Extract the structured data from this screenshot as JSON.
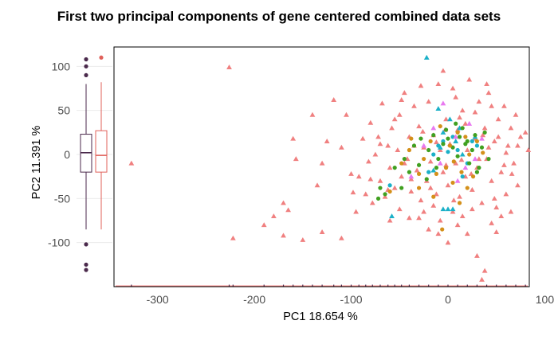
{
  "chart_data": {
    "type": "scatter",
    "title": "First two principal components of gene centered combined data sets",
    "xlabel": "PC1 18.654 %",
    "ylabel": "PC2 11.391 %",
    "xlim": [
      -345,
      84
    ],
    "ylim": [
      -150,
      122
    ],
    "x_ticks": [
      -300,
      -200,
      -100,
      0,
      100
    ],
    "y_ticks": [
      -100,
      -50,
      0,
      50,
      100
    ],
    "grid": false,
    "legend": "none",
    "marginal_boxplots": [
      {
        "q1": -20,
        "median": 2,
        "q3": 23,
        "whisker_low": -85,
        "whisker_high": 80,
        "outliers": [
          90,
          100,
          108,
          -102,
          -125,
          -131
        ],
        "color": "#4b2a4c"
      },
      {
        "q1": -20,
        "median": -1,
        "q3": 27,
        "whisker_low": -85,
        "whisker_high": 82,
        "outliers": [
          110
        ],
        "color": "#e0605a"
      }
    ],
    "series": [
      {
        "color": "#f08080",
        "marker": "triangle",
        "points": [
          [
            -226,
            99
          ],
          [
            -327,
            -10
          ],
          [
            -222,
            -95
          ],
          [
            -170,
            -55
          ],
          [
            -165,
            -63
          ],
          [
            -160,
            18
          ],
          [
            -157,
            -5
          ],
          [
            -140,
            45
          ],
          [
            -135,
            -35
          ],
          [
            -130,
            -10
          ],
          [
            -125,
            15
          ],
          [
            -118,
            62
          ],
          [
            -110,
            8
          ],
          [
            -105,
            45
          ],
          [
            -100,
            -22
          ],
          [
            -98,
            -43
          ],
          [
            -95,
            -65
          ],
          [
            -92,
            -25
          ],
          [
            -88,
            18
          ],
          [
            -85,
            -45
          ],
          [
            -82,
            -8
          ],
          [
            -80,
            36
          ],
          [
            -78,
            -55
          ],
          [
            -75,
            0
          ],
          [
            -72,
            20
          ],
          [
            -70,
            -30
          ],
          [
            -68,
            58
          ],
          [
            -65,
            -48
          ],
          [
            -62,
            10
          ],
          [
            -60,
            -15
          ],
          [
            -58,
            30
          ],
          [
            -55,
            -38
          ],
          [
            -52,
            5
          ],
          [
            -50,
            45
          ],
          [
            -48,
            -25
          ],
          [
            -45,
            70
          ],
          [
            -42,
            -5
          ],
          [
            -40,
            20
          ],
          [
            -38,
            -42
          ],
          [
            -35,
            55
          ],
          [
            -32,
            -18
          ],
          [
            -30,
            32
          ],
          [
            -28,
            -52
          ],
          [
            -25,
            8
          ],
          [
            -22,
            -30
          ],
          [
            -20,
            60
          ],
          [
            -18,
            -8
          ],
          [
            -15,
            22
          ],
          [
            -12,
            -45
          ],
          [
            -10,
            80
          ],
          [
            -8,
            5
          ],
          [
            -5,
            -20
          ],
          [
            -2,
            40
          ],
          [
            0,
            -35
          ],
          [
            2,
            12
          ],
          [
            5,
            75
          ],
          [
            8,
            -10
          ],
          [
            10,
            28
          ],
          [
            12,
            -48
          ],
          [
            15,
            50
          ],
          [
            18,
            -25
          ],
          [
            20,
            5
          ],
          [
            22,
            85
          ],
          [
            25,
            -40
          ],
          [
            28,
            18
          ],
          [
            30,
            -15
          ],
          [
            32,
            60
          ],
          [
            35,
            -55
          ],
          [
            38,
            30
          ],
          [
            40,
            -5
          ],
          [
            42,
            70
          ],
          [
            45,
            -30
          ],
          [
            48,
            15
          ],
          [
            50,
            -60
          ],
          [
            52,
            40
          ],
          [
            55,
            -20
          ],
          [
            58,
            55
          ],
          [
            60,
            -45
          ],
          [
            62,
            10
          ],
          [
            65,
            30
          ],
          [
            68,
            -10
          ],
          [
            70,
            45
          ],
          [
            72,
            -35
          ],
          [
            75,
            20
          ],
          [
            80,
            25
          ],
          [
            83,
            5
          ],
          [
            -190,
            -80
          ],
          [
            -180,
            -70
          ],
          [
            -170,
            -92
          ],
          [
            -150,
            -97
          ],
          [
            -130,
            -88
          ],
          [
            -110,
            -95
          ],
          [
            -30,
            -72
          ],
          [
            -20,
            -85
          ],
          [
            -10,
            -90
          ],
          [
            0,
            -100
          ],
          [
            10,
            -80
          ],
          [
            20,
            -90
          ],
          [
            30,
            -115
          ],
          [
            35,
            -142
          ],
          [
            38,
            -132
          ],
          [
            45,
            -78
          ],
          [
            50,
            -88
          ],
          [
            55,
            -70
          ],
          [
            -60,
            -75
          ],
          [
            -50,
            -62
          ],
          [
            -40,
            -72
          ],
          [
            -25,
            -65
          ],
          [
            -15,
            -58
          ],
          [
            5,
            -65
          ],
          [
            15,
            -70
          ],
          [
            25,
            -62
          ],
          [
            -5,
            95
          ],
          [
            8,
            65
          ],
          [
            -28,
            78
          ],
          [
            12,
            42
          ],
          [
            -35,
            10
          ],
          [
            28,
            48
          ],
          [
            40,
            80
          ],
          [
            -45,
            -10
          ],
          [
            45,
            55
          ],
          [
            -8,
            -75
          ],
          [
            65,
            -65
          ],
          [
            -70,
            12
          ],
          [
            -55,
            40
          ],
          [
            -3,
            28
          ],
          [
            18,
            35
          ],
          [
            32,
            -5
          ],
          [
            48,
            -50
          ],
          [
            -18,
            -38
          ],
          [
            24,
            -22
          ],
          [
            36,
            22
          ],
          [
            -12,
            14
          ],
          [
            6,
            -52
          ],
          [
            14,
            -6
          ],
          [
            -26,
            26
          ],
          [
            60,
            2
          ],
          [
            52,
            20
          ],
          [
            -38,
            -28
          ],
          [
            -2,
            -12
          ],
          [
            42,
            8
          ],
          [
            -48,
            62
          ],
          [
            72,
            10
          ],
          [
            66,
            -22
          ],
          [
            58,
            -12
          ],
          [
            -62,
            -40
          ],
          [
            -80,
            -28
          ]
        ]
      },
      {
        "color": "#1bb0c8",
        "marker": "triangle",
        "points": [
          [
            -22,
            110
          ],
          [
            -10,
            52
          ],
          [
            2,
            40
          ],
          [
            8,
            15
          ],
          [
            12,
            30
          ],
          [
            -5,
            25
          ],
          [
            15,
            0
          ],
          [
            -15,
            -18
          ],
          [
            5,
            -62
          ],
          [
            0,
            -62
          ],
          [
            -5,
            -62
          ],
          [
            -58,
            -70
          ],
          [
            28,
            20
          ],
          [
            -8,
            8
          ]
        ]
      },
      {
        "color": "#1bb0c8",
        "marker": "circle",
        "points": [
          [
            -5,
            15
          ],
          [
            10,
            5
          ],
          [
            20,
            -10
          ],
          [
            -20,
            -20
          ],
          [
            30,
            10
          ],
          [
            -60,
            -35
          ],
          [
            -10,
            10
          ],
          [
            5,
            20
          ],
          [
            15,
            -25
          ],
          [
            -15,
            0
          ],
          [
            25,
            15
          ],
          [
            0,
            3
          ]
        ]
      },
      {
        "color": "#e879f0",
        "marker": "triangle",
        "points": [
          [
            -5,
            58
          ],
          [
            8,
            20
          ],
          [
            18,
            -15
          ],
          [
            -38,
            -25
          ],
          [
            -15,
            30
          ],
          [
            -25,
            10
          ],
          [
            22,
            35
          ],
          [
            10,
            -30
          ],
          [
            -8,
            -10
          ],
          [
            28,
            -5
          ],
          [
            35,
            18
          ]
        ]
      },
      {
        "color": "#40a020",
        "marker": "circle",
        "points": [
          [
            -72,
            -50
          ],
          [
            -65,
            -45
          ],
          [
            -70,
            -38
          ],
          [
            -45,
            -5
          ],
          [
            -35,
            10
          ],
          [
            -28,
            18
          ],
          [
            -20,
            5
          ],
          [
            -15,
            22
          ],
          [
            -10,
            -5
          ],
          [
            -5,
            12
          ],
          [
            0,
            18
          ],
          [
            5,
            8
          ],
          [
            10,
            -2
          ],
          [
            15,
            30
          ],
          [
            18,
            12
          ],
          [
            22,
            -10
          ],
          [
            25,
            5
          ],
          [
            28,
            22
          ],
          [
            32,
            -15
          ],
          [
            35,
            8
          ],
          [
            38,
            25
          ],
          [
            42,
            -5
          ],
          [
            -40,
            -20
          ],
          [
            -30,
            -12
          ],
          [
            -22,
            -28
          ],
          [
            -12,
            -15
          ],
          [
            -2,
            28
          ],
          [
            8,
            35
          ],
          [
            12,
            20
          ],
          [
            20,
            15
          ],
          [
            30,
            -20
          ],
          [
            -48,
            -38
          ],
          [
            -55,
            -15
          ]
        ]
      },
      {
        "color": "#d4901a",
        "marker": "circle",
        "points": [
          [
            -60,
            -42
          ],
          [
            -48,
            -10
          ],
          [
            -38,
            18
          ],
          [
            -30,
            -38
          ],
          [
            -25,
            -5
          ],
          [
            -18,
            15
          ],
          [
            -12,
            -22
          ],
          [
            -8,
            32
          ],
          [
            -2,
            -15
          ],
          [
            2,
            10
          ],
          [
            6,
            -8
          ],
          [
            10,
            25
          ],
          [
            14,
            -20
          ],
          [
            18,
            20
          ],
          [
            22,
            0
          ],
          [
            26,
            -25
          ],
          [
            30,
            15
          ],
          [
            -40,
            5
          ],
          [
            -15,
            -48
          ],
          [
            5,
            -32
          ],
          [
            20,
            -38
          ],
          [
            -6,
            -85
          ],
          [
            12,
            -55
          ],
          [
            -30,
            -22
          ],
          [
            36,
            2
          ]
        ]
      }
    ],
    "rug_x": [
      -327,
      -226,
      -222,
      -190,
      -170,
      -160,
      -150,
      -140,
      -130,
      -118,
      -110,
      -100,
      -92,
      -85,
      -78,
      -70,
      -62,
      -55,
      -48,
      -40,
      -30,
      -20,
      -10,
      0,
      10,
      20,
      30,
      40,
      50,
      60,
      70,
      80
    ]
  }
}
